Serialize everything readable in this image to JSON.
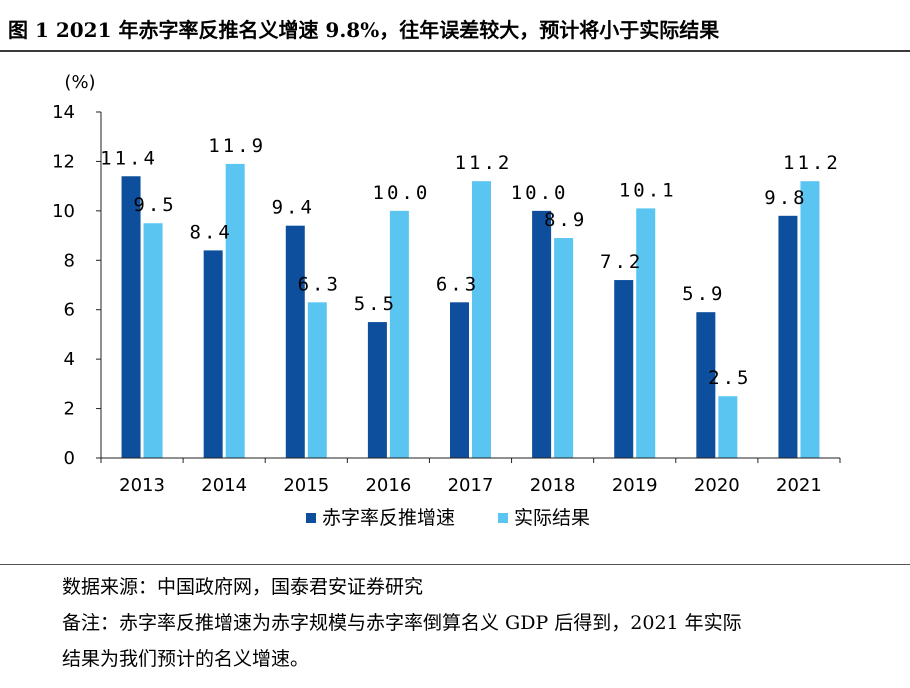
{
  "figure_title": "图 1 2021 年赤字率反推名义增速 9.8%，往年误差较大，预计将小于实际结果",
  "source_text": "数据来源：中国政府网，国泰君安证券研究",
  "note_line1": "备注：赤字率反推增速为赤字规模与赤字率倒算名义 GDP 后得到，2021 年实际",
  "note_line2": "结果为我们预计的名义增速。",
  "chart_data": {
    "type": "bar",
    "title": "",
    "xlabel": "",
    "ylabel": "(%)",
    "ylim": [
      0,
      14
    ],
    "yticks": [
      "0",
      "2",
      "4",
      "6",
      "8",
      "10",
      "12",
      "14"
    ],
    "categories": [
      "2013",
      "2014",
      "2015",
      "2016",
      "2017",
      "2018",
      "2019",
      "2020",
      "2021"
    ],
    "legend_position": "bottom",
    "series": [
      {
        "name": "赤字率反推增速",
        "color": "#0d4f9c",
        "values": [
          11.4,
          8.4,
          9.4,
          5.5,
          6.3,
          10.0,
          7.2,
          5.9,
          9.8
        ],
        "labels": [
          "11.4",
          "8.4",
          "9.4",
          "5.5",
          "6.3",
          "10.0",
          "7.2",
          "5.9",
          "9.8"
        ]
      },
      {
        "name": "实际结果",
        "color": "#5bc5f2",
        "values": [
          9.5,
          11.9,
          6.3,
          10.0,
          11.2,
          8.9,
          10.1,
          2.5,
          11.2
        ],
        "labels": [
          "9.5",
          "11.9",
          "6.3",
          "10.0",
          "11.2",
          "8.9",
          "10.1",
          "2.5",
          "11.2"
        ]
      }
    ]
  }
}
